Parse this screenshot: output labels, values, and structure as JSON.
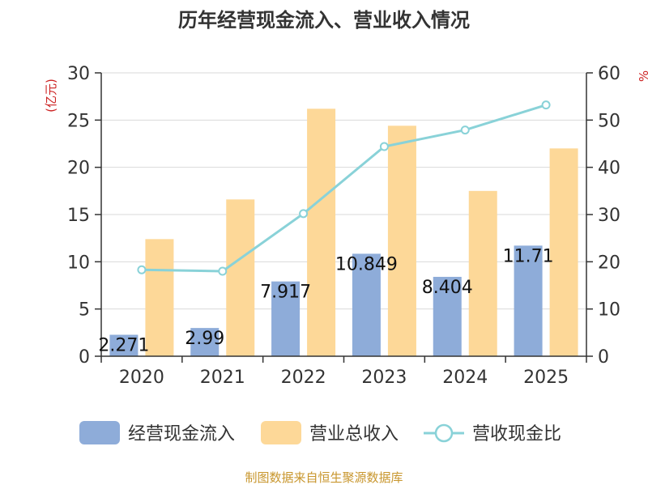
{
  "chart_data": {
    "type": "bar",
    "title": "历年经营现金流入、营业收入情况",
    "categories": [
      "2020",
      "2021",
      "2022",
      "2023",
      "2024",
      "2025"
    ],
    "left_axis": {
      "label": "(亿元)",
      "range": [
        0,
        30
      ],
      "ticks": [
        0,
        5,
        10,
        15,
        20,
        25,
        30
      ]
    },
    "right_axis": {
      "label": "%",
      "range": [
        0,
        60
      ],
      "ticks": [
        0,
        10,
        20,
        30,
        40,
        50,
        60
      ]
    },
    "grid": true,
    "series": [
      {
        "name": "经营现金流入",
        "kind": "bar",
        "axis": "left",
        "color": "#8eacd9",
        "values": [
          2.271,
          2.99,
          7.917,
          10.849,
          8.404,
          11.71
        ],
        "labels": [
          "2.271",
          "2.99",
          "7.917",
          "10.849",
          "8.404",
          "11.71"
        ]
      },
      {
        "name": "营业总收入",
        "kind": "bar",
        "axis": "left",
        "color": "#fdd898",
        "values": [
          12.4,
          16.6,
          26.2,
          24.4,
          17.5,
          22.0
        ]
      },
      {
        "name": "营收现金比",
        "kind": "line",
        "axis": "right",
        "color": "#89d2d8",
        "values": [
          18.3,
          18.0,
          30.2,
          44.4,
          47.9,
          53.2
        ]
      }
    ],
    "legend_position": "bottom",
    "source": "制图数据来自恒生聚源数据库"
  }
}
